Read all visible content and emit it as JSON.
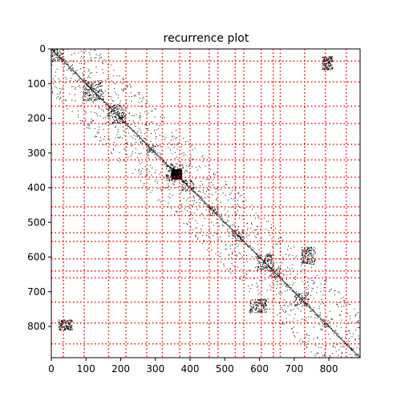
{
  "chart_data": {
    "type": "heatmap",
    "title": "recurrence plot",
    "xlabel": "",
    "ylabel": "",
    "size": 890,
    "xlim": [
      0,
      890
    ],
    "ylim": [
      890,
      0
    ],
    "x_ticks": [
      0,
      100,
      200,
      300,
      400,
      500,
      600,
      700,
      800
    ],
    "y_ticks": [
      0,
      100,
      200,
      300,
      400,
      500,
      600,
      700,
      800
    ],
    "x_tick_labels": [
      "0",
      "100",
      "200",
      "300",
      "400",
      "500",
      "600",
      "700",
      "800"
    ],
    "y_tick_labels": [
      "0",
      "100",
      "200",
      "300",
      "400",
      "500",
      "600",
      "700",
      "800"
    ],
    "grid": false,
    "boundary_lines": [
      35,
      95,
      165,
      215,
      275,
      320,
      370,
      400,
      455,
      480,
      530,
      555,
      605,
      640,
      660,
      730,
      790,
      850
    ],
    "boundary_color": "#ff0000",
    "recurrence_color": "#000000",
    "dense_blocks": [
      {
        "start": 0,
        "end": 35
      },
      {
        "start": 90,
        "end": 150
      },
      {
        "start": 160,
        "end": 215
      },
      {
        "start": 275,
        "end": 300
      },
      {
        "start": 330,
        "end": 380
      },
      {
        "start": 375,
        "end": 410
      },
      {
        "start": 455,
        "end": 480
      },
      {
        "start": 520,
        "end": 555
      },
      {
        "start": 590,
        "end": 640
      },
      {
        "start": 630,
        "end": 660
      },
      {
        "start": 700,
        "end": 740
      },
      {
        "start": 780,
        "end": 800
      }
    ],
    "off_diagonal_blocks": [
      {
        "x": [
          780,
          810
        ],
        "y": [
          20,
          60
        ]
      },
      {
        "x": [
          20,
          60
        ],
        "y": [
          780,
          810
        ]
      },
      {
        "x": [
          720,
          760
        ],
        "y": [
          570,
          620
        ]
      },
      {
        "x": [
          570,
          620
        ],
        "y": [
          720,
          760
        ]
      }
    ]
  }
}
